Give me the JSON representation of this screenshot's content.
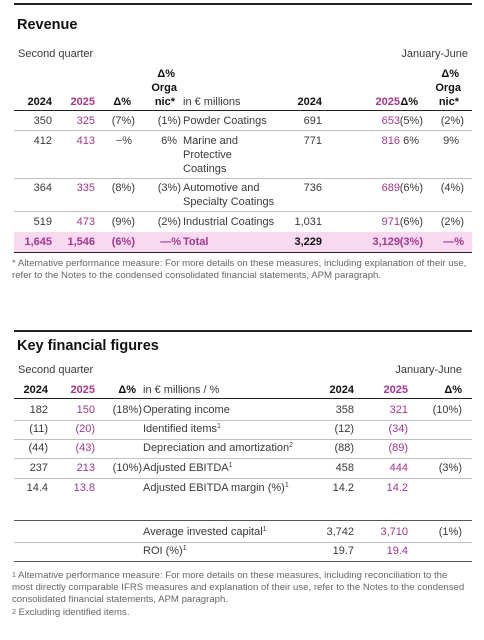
{
  "revenue": {
    "title": "Revenue",
    "left_period": "Second quarter",
    "right_period": "January-June",
    "hdr_delta": "Δ%",
    "hdr_org1": "Orga",
    "hdr_org2": "nic*",
    "hdr_y1": "2024",
    "hdr_y2": "2025",
    "hdr_unit": "in € millions",
    "rows": [
      {
        "q24": "350",
        "q25": "325",
        "qd": "(7%)",
        "qo": "(1%)",
        "label": "Powder Coatings",
        "h24": "691",
        "h25": "653",
        "hd": "(5%)",
        "ho": "(2%)"
      },
      {
        "q24": "412",
        "q25": "413",
        "qd": "−%",
        "qo": "6%",
        "label": "Marine and",
        "label2": "Protective",
        "label3": "Coatings",
        "h24": "771",
        "h25": "816",
        "hd": "6%",
        "ho": "9%"
      },
      {
        "q24": "364",
        "q25": "335",
        "qd": "(8%)",
        "qo": "(3%)",
        "label": "Automotive and",
        "label2": "Specialty Coatings",
        "h24": "736",
        "h25": "689",
        "hd": "(6%)",
        "ho": "(4%)"
      },
      {
        "q24": "519",
        "q25": "473",
        "qd": "(9%)",
        "qo": "(2%)",
        "label": "Industrial Coatings",
        "h24": "1,031",
        "h25": "971",
        "hd": "(6%)",
        "ho": "(2%)"
      }
    ],
    "total": {
      "q24": "1,645",
      "q25": "1,546",
      "qd": "(6%)",
      "qo": "—%",
      "label": "Total",
      "h24": "3,229",
      "h25": "3,129",
      "hd": "(3%)",
      "ho": "—%"
    },
    "footnote": "* Alternative performance measure: For more details on these measures, including explanation of their use, refer to the Notes to the condensed consolidated financial statements, APM paragraph."
  },
  "kff": {
    "title": "Key financial figures",
    "left_period": "Second quarter",
    "right_period": "January-June",
    "hdr_y1": "2024",
    "hdr_y2": "2025",
    "hdr_delta": "Δ%",
    "hdr_unit": "in € millions / %",
    "rows": [
      {
        "q24": "182",
        "q25": "150",
        "qd": "(18%)",
        "label": "Operating income",
        "sup": "",
        "h24": "358",
        "h25": "321",
        "hd": "(10%)"
      },
      {
        "q24": "(11)",
        "q25": "(20)",
        "qd": "",
        "label": "Identified items",
        "sup": "1",
        "h24": "(12)",
        "h25": "(34)",
        "hd": ""
      },
      {
        "q24": "(44)",
        "q25": "(43)",
        "qd": "",
        "label": "Depreciation and amortization",
        "sup": "2",
        "h24": "(88)",
        "h25": "(89)",
        "hd": ""
      },
      {
        "q24": "237",
        "q25": "213",
        "qd": "(10%)",
        "label": "Adjusted EBITDA",
        "sup": "1",
        "h24": "458",
        "h25": "444",
        "hd": "(3%)"
      },
      {
        "q24": "14.4",
        "q25": "13.8",
        "qd": "",
        "label": "Adjusted EBITDA margin (%)",
        "sup": "1",
        "h24": "14.2",
        "h25": "14.2",
        "hd": ""
      }
    ],
    "rows2": [
      {
        "label": "Average invested capital",
        "sup": "1",
        "h24": "3,742",
        "h25": "3,710",
        "hd": "(1%)"
      },
      {
        "label": "ROI (%)",
        "sup": "1",
        "h24": "19.7",
        "h25": "19.4",
        "hd": ""
      }
    ],
    "footnote1_sup": "1",
    "footnote1": "Alternative performance measure: For more details on these measures, including reconciliation to the most directly comparable IFRS measures and explanation of their use, refer to the Notes to the condensed consolidated financial statements, APM paragraph.",
    "footnote2_sup": "2",
    "footnote2": "Excluding identified items."
  }
}
